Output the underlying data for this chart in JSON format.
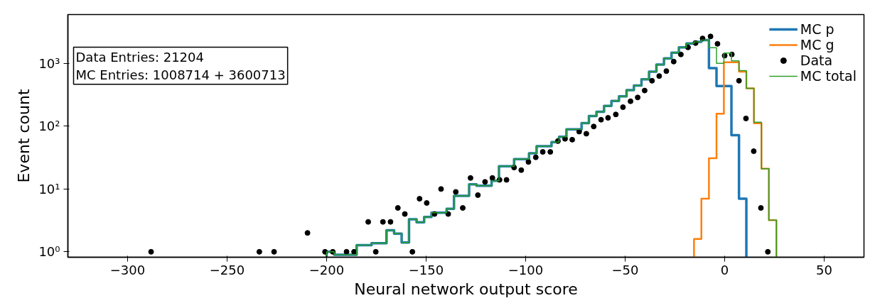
{
  "chart_data": {
    "type": "histogram",
    "xlabel": "Neural network output score",
    "ylabel": "Event count",
    "annotations": [
      "Data Entries: 21204",
      "MC Entries: 1008714 + 3600713"
    ],
    "bins": [
      -200,
      -196.2,
      -192.5,
      -188.7,
      -184.9,
      -181.2,
      -177.4,
      -173.6,
      -169.9,
      -166.1,
      -162.3,
      -158.6,
      -154.8,
      -151.0,
      -147.3,
      -143.5,
      -139.7,
      -136.0,
      -132.2,
      -128.4,
      -124.7,
      -120.9,
      -117.1,
      -113.4,
      -109.6,
      -105.8,
      -102.1,
      -98.3,
      -94.5,
      -90.8,
      -87.0,
      -83.2,
      -79.5,
      -75.7,
      -71.9,
      -68.2,
      -64.4,
      -60.6,
      -56.9,
      -53.1,
      -49.3,
      -45.6,
      -41.8,
      -38.0,
      -34.3,
      -30.5,
      -26.7,
      -23.0,
      -19.2,
      -15.4,
      -11.7,
      -7.9,
      -4.1,
      -0.4,
      3.4,
      7.2,
      10.9,
      14.7,
      18.5,
      22.2,
      26.0
    ],
    "series": [
      {
        "name": "MC p",
        "color": "#1f77b4",
        "bins": [
          -200,
          -196.2,
          -192.5,
          -188.7,
          -184.9,
          -181.2,
          -177.4,
          -173.6,
          -169.9,
          -166.1,
          -162.3,
          -158.6,
          -154.8,
          -151.0,
          -147.3,
          -143.5,
          -139.7,
          -136.0,
          -132.2,
          -128.4,
          -124.7,
          -120.9,
          -117.1,
          -113.4,
          -109.6,
          -105.8,
          -102.1,
          -98.3,
          -94.5,
          -90.8,
          -87.0,
          -83.2,
          -79.5,
          -75.7,
          -71.9,
          -68.2,
          -64.4,
          -60.6,
          -56.9,
          -53.1,
          -49.3,
          -45.6,
          -41.8,
          -38.0,
          -34.3,
          -30.5,
          -26.7,
          -23.0,
          -19.2,
          -15.4,
          -11.7,
          -7.9,
          -4.1,
          -0.4,
          3.4,
          7.2,
          10.9
        ],
        "values": [
          1,
          0.9,
          0.9,
          0.9,
          1.28,
          1.28,
          1.37,
          1.37,
          2.2,
          1.95,
          1.41,
          3.3,
          2.95,
          3.6,
          4.2,
          4.2,
          4.85,
          7.8,
          7.8,
          11.9,
          11.3,
          11.3,
          13.5,
          23,
          23,
          30,
          30,
          37,
          48,
          48,
          56,
          68,
          89,
          89,
          112,
          145,
          170,
          210,
          252,
          300,
          375,
          445,
          560,
          740,
          960,
          1200,
          1480,
          1800,
          2080,
          2200,
          2350,
          840,
          435,
          435,
          72,
          7.0
        ]
      },
      {
        "name": "MC g",
        "color": "#ff7f0e",
        "bins": [
          -15.4,
          -11.7,
          -7.9,
          -4.1,
          -0.4,
          3.4,
          7.2,
          10.9,
          14.7,
          18.5,
          22.2,
          26.0
        ],
        "values": [
          1.6,
          7.0,
          31,
          158,
          1045,
          1045,
          740,
          400,
          111,
          21,
          3.2
        ]
      },
      {
        "name": "Data",
        "type": "scatter",
        "color": "#000000",
        "marker": "circle",
        "x": [
          -288.2,
          -233.8,
          -226.4,
          -209.6,
          -200.8,
          -196.9,
          -190.0,
          -186.2,
          -179.1,
          -175.3,
          -171.7,
          -167.9,
          -164.2,
          -160.7,
          -156.9,
          -153.3,
          -149.7,
          -145.8,
          -142.5,
          -138.9,
          -135.1,
          -131.6,
          -127.7,
          -124.0,
          -120.4,
          -116.7,
          -113.1,
          -109.6,
          -105.8,
          -102.2,
          -98.6,
          -94.9,
          -91.4,
          -87.6,
          -83.8,
          -80.2,
          -76.6,
          -73.1,
          -69.5,
          -65.8,
          -62.1,
          -58.6,
          -54.7,
          -51.1,
          -47.3,
          -43.7,
          -40.2,
          -36.5,
          -32.9,
          -29.3,
          -25.6,
          -22.0,
          -18.4,
          -14.6,
          -11.1,
          -7.1,
          -3.6,
          0.0,
          3.6,
          7.2,
          10.7,
          14.6,
          18.2,
          21.7
        ],
        "values": [
          1,
          1,
          1,
          2,
          1,
          1,
          1,
          1,
          3,
          1,
          3,
          3,
          5,
          4,
          1,
          7,
          6,
          4,
          10,
          4,
          9,
          5,
          15,
          8,
          13,
          15,
          14,
          14,
          22,
          20,
          27,
          32,
          39,
          39,
          58,
          63,
          61,
          82,
          76,
          99,
          127,
          136,
          154,
          201,
          250,
          287,
          370,
          530,
          630,
          755,
          1070,
          1390,
          1800,
          2110,
          2500,
          2690,
          2050,
          1330,
          1390,
          530,
          133,
          40,
          5,
          1
        ]
      },
      {
        "name": "MC total",
        "color": "#2ca02c",
        "values": [
          1,
          0.9,
          0.9,
          0.9,
          1.28,
          1.28,
          1.37,
          1.37,
          2.2,
          1.95,
          1.41,
          3.3,
          2.95,
          3.6,
          4.2,
          4.2,
          4.85,
          7.8,
          7.8,
          11.9,
          11.3,
          11.3,
          13.5,
          23,
          23,
          30,
          30,
          37,
          48,
          48,
          56,
          68,
          89,
          89,
          112,
          145,
          170,
          210,
          252,
          300,
          375,
          445,
          560,
          740,
          960,
          1200,
          1480,
          1800,
          2080,
          2200,
          2350,
          1780,
          1000,
          1460,
          1100,
          770,
          400,
          116,
          21,
          3.2
        ]
      }
    ],
    "xlim": [
      -330,
      70
    ],
    "ylim": [
      0.82,
      6000
    ],
    "log": "y",
    "xticks": [
      -300,
      -250,
      -200,
      -150,
      -100,
      -50,
      0,
      50
    ],
    "yticks": [
      {
        "value": 1,
        "label": "10⁰"
      },
      {
        "value": 10,
        "label": "10¹"
      },
      {
        "value": 100,
        "label": "10²"
      },
      {
        "value": 1000,
        "label": "10³"
      }
    ],
    "grid": false,
    "legend": "top right"
  }
}
